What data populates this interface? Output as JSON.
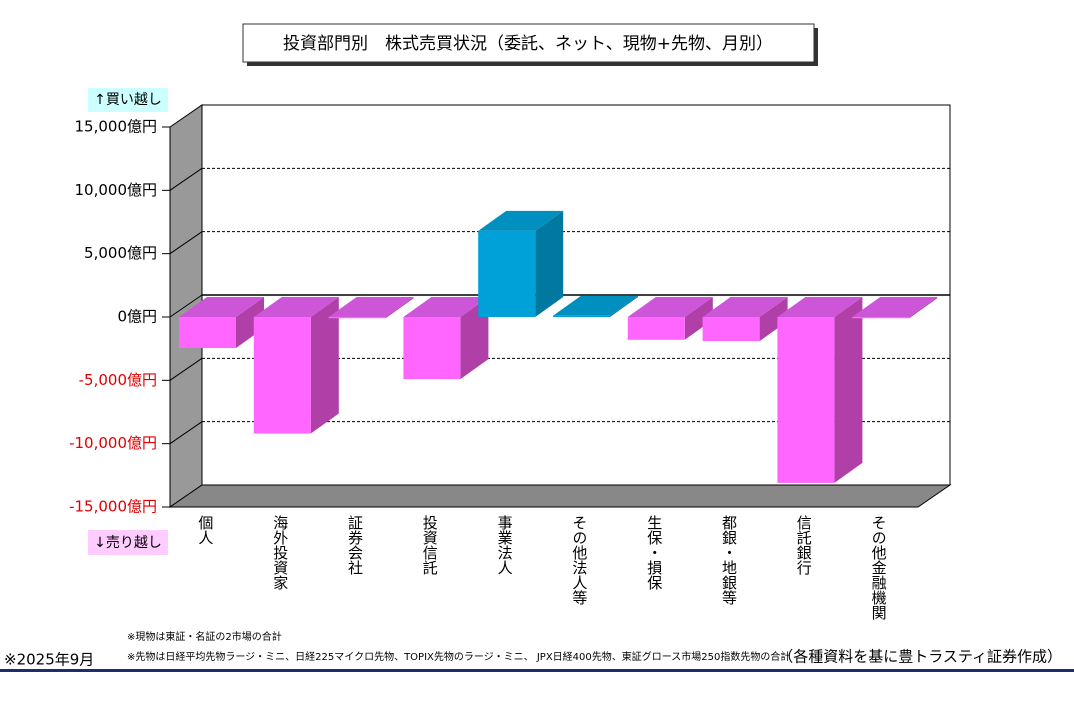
{
  "chart_data": {
    "type": "bar3d",
    "title": "投資部門別　株式売買状況（委託、ネット、現物+先物、月別）",
    "buy_label": "↑買い越し",
    "sell_label": "↓売り越し",
    "categories": [
      "個人",
      "海外投資家",
      "証券会社",
      "投資信託",
      "事業法人",
      "その他法人等",
      "生保・損保",
      "都銀・地銀等",
      "信託銀行",
      "その他金融機関"
    ],
    "values": [
      -2450,
      -9200,
      -100,
      -4900,
      6800,
      100,
      -1800,
      -1900,
      -13100,
      -100
    ],
    "colors": {
      "positive": "#00a0d8",
      "negative": "#ff66ff"
    },
    "negative_tick_color": "#e00000",
    "ylim": [
      -15000,
      15000
    ],
    "yticks": [
      {
        "value": -15000,
        "label": "-15,000億円"
      },
      {
        "value": -10000,
        "label": "-10,000億円"
      },
      {
        "value": -5000,
        "label": "-5,000億円"
      },
      {
        "value": 0,
        "label": "0億円"
      },
      {
        "value": 5000,
        "label": "5,000億円"
      },
      {
        "value": 10000,
        "label": "10,000億円"
      },
      {
        "value": 15000,
        "label": "15,000億円"
      }
    ],
    "grid": true,
    "notes": [
      "※現物は東証・名証の2市場の合計",
      "※先物は日経平均先物ラージ・ミニ、日経225マイクロ先物、TOPIX先物のラージ・ミニ、 JPX日経400先物、東証グロース市場250指数先物の合計"
    ],
    "date": "※2025年9月",
    "source": "（各種資料を基に豊トラスティ証券作成）"
  }
}
